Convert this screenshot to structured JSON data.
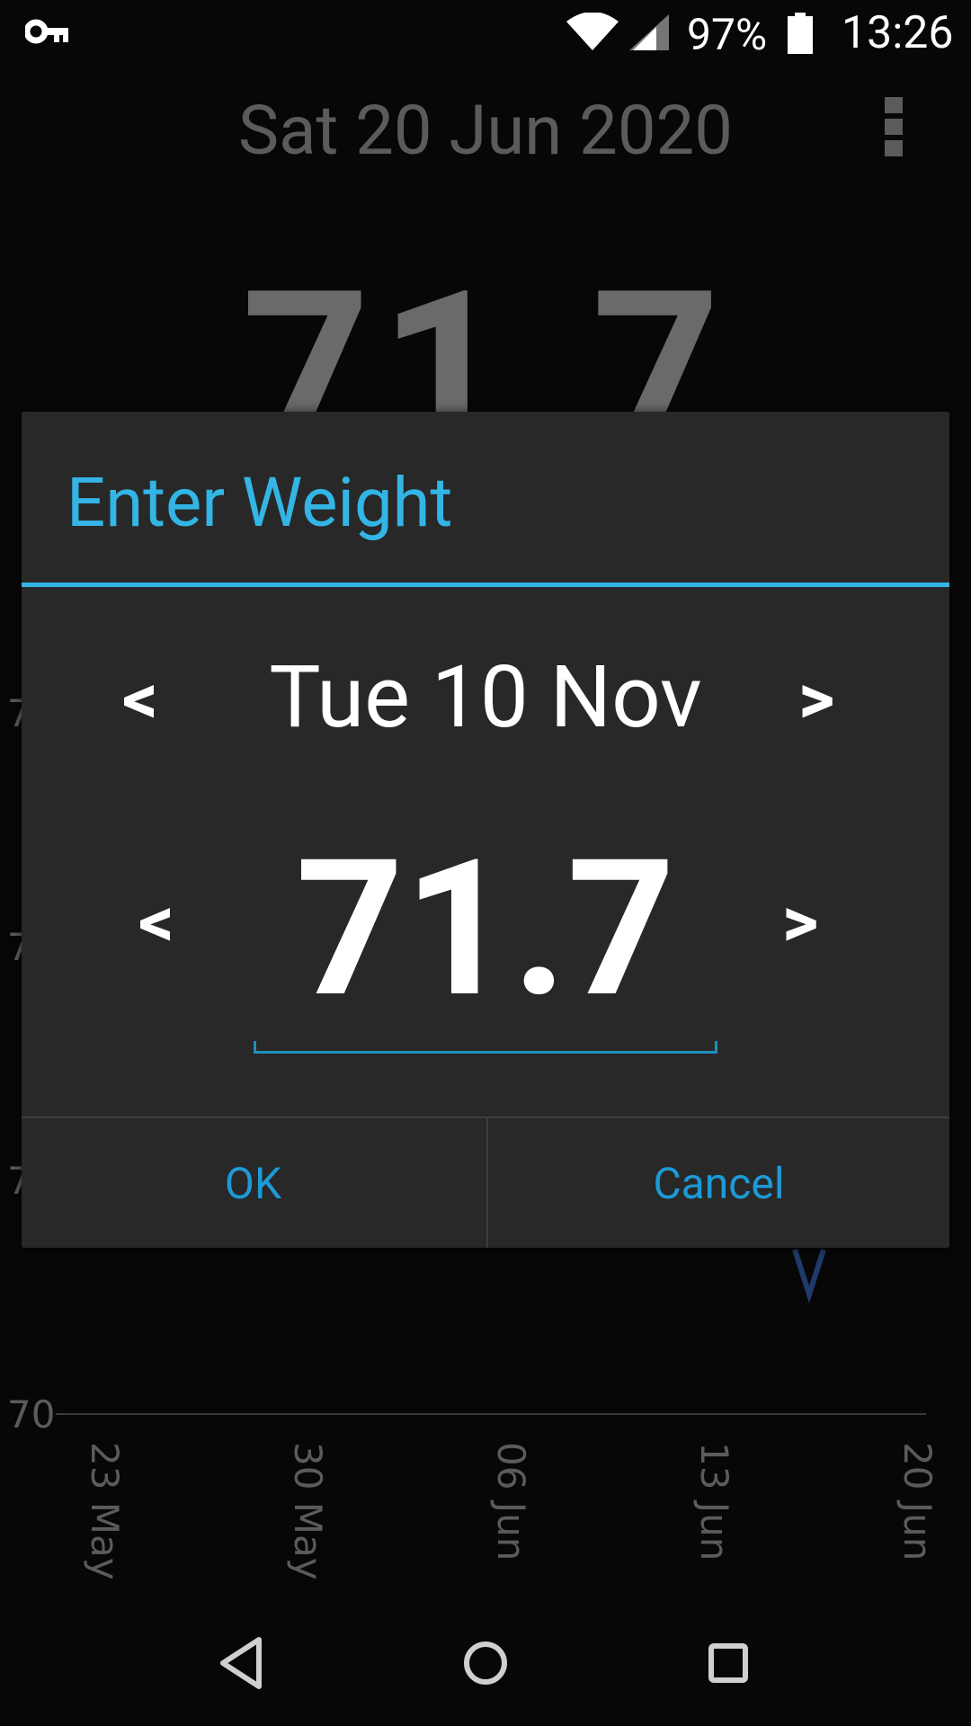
{
  "status_bar": {
    "battery_percent": "97%",
    "time": "13:26",
    "icons": [
      "key-icon",
      "wifi-icon",
      "cell-signal-icon",
      "battery-icon"
    ]
  },
  "app": {
    "title": "Sat 20 Jun 2020",
    "current_weight": "71.7"
  },
  "chart_data": {
    "type": "line",
    "y_tick_labels": [
      "7",
      "7",
      "7",
      "70"
    ],
    "x_tick_labels": [
      "23 May",
      "30 May",
      "06 Jun",
      "13 Jun",
      "20 Jun"
    ],
    "line_color": "#1f3a6b"
  },
  "dialog": {
    "title": "Enter Weight",
    "prev_date_arrow": "<",
    "next_date_arrow": ">",
    "date": "Tue 10 Nov",
    "decrease_arrow": "<",
    "increase_arrow": ">",
    "weight": "71.7",
    "ok_label": "OK",
    "cancel_label": "Cancel",
    "accent_color": "#33b5e5"
  },
  "nav_bar": {
    "icons": [
      "back-icon",
      "home-icon",
      "recents-icon"
    ]
  }
}
